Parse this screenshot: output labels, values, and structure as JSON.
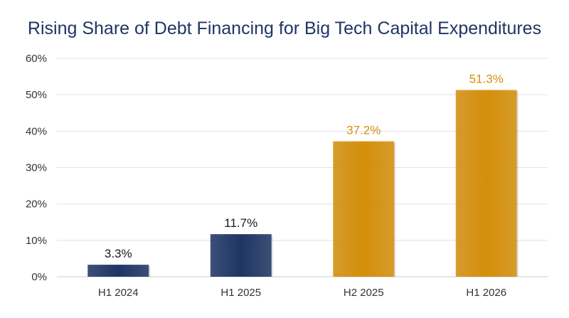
{
  "chart_data": {
    "type": "bar",
    "title": "Rising Share of Debt Financing for Big Tech Capital Expenditures",
    "xlabel": "",
    "ylabel": "",
    "categories": [
      "H1 2024",
      "H1 2025",
      "H2 2025",
      "H1 2026"
    ],
    "values": [
      3.3,
      11.7,
      37.2,
      51.3
    ],
    "data_labels": [
      "3.3%",
      "11.7%",
      "37.2%",
      "51.3%"
    ],
    "ylim": [
      0,
      60
    ],
    "yticks": [
      0,
      10,
      20,
      30,
      40,
      50,
      60
    ],
    "ytick_labels": [
      "0%",
      "10%",
      "20%",
      "30%",
      "40%",
      "50%",
      "60%"
    ],
    "grid": true,
    "legend": "none",
    "bar_colors": [
      "#1f3564",
      "#1f3564",
      "#d48f0b",
      "#d48f0b"
    ],
    "label_colors": [
      "#1a1a1a",
      "#1a1a1a",
      "#d48f0b",
      "#d48f0b"
    ]
  }
}
